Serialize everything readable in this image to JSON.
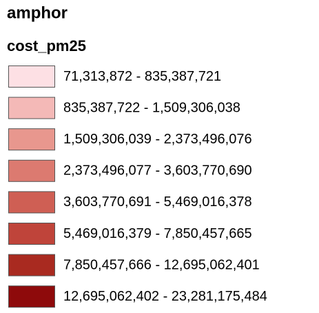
{
  "legend": {
    "title": "amphor",
    "layer": "cost_pm25",
    "items": [
      {
        "label": "71,313,872 - 835,387,721",
        "color": "#fde0e4"
      },
      {
        "label": "835,387,722 - 1,509,306,038",
        "color": "#f4b9b7"
      },
      {
        "label": "1,509,306,039 - 2,373,496,076",
        "color": "#e8978e"
      },
      {
        "label": "2,373,496,077 - 3,603,770,690",
        "color": "#dc7a70"
      },
      {
        "label": "3,603,770,691 - 5,469,016,378",
        "color": "#cf5f54"
      },
      {
        "label": "5,469,016,379 - 7,850,457,665",
        "color": "#bf443a"
      },
      {
        "label": "7,850,457,666 - 12,695,062,401",
        "color": "#a92a20"
      },
      {
        "label": "12,695,062,402 - 23,281,175,484",
        "color": "#8e0a0b"
      }
    ]
  }
}
